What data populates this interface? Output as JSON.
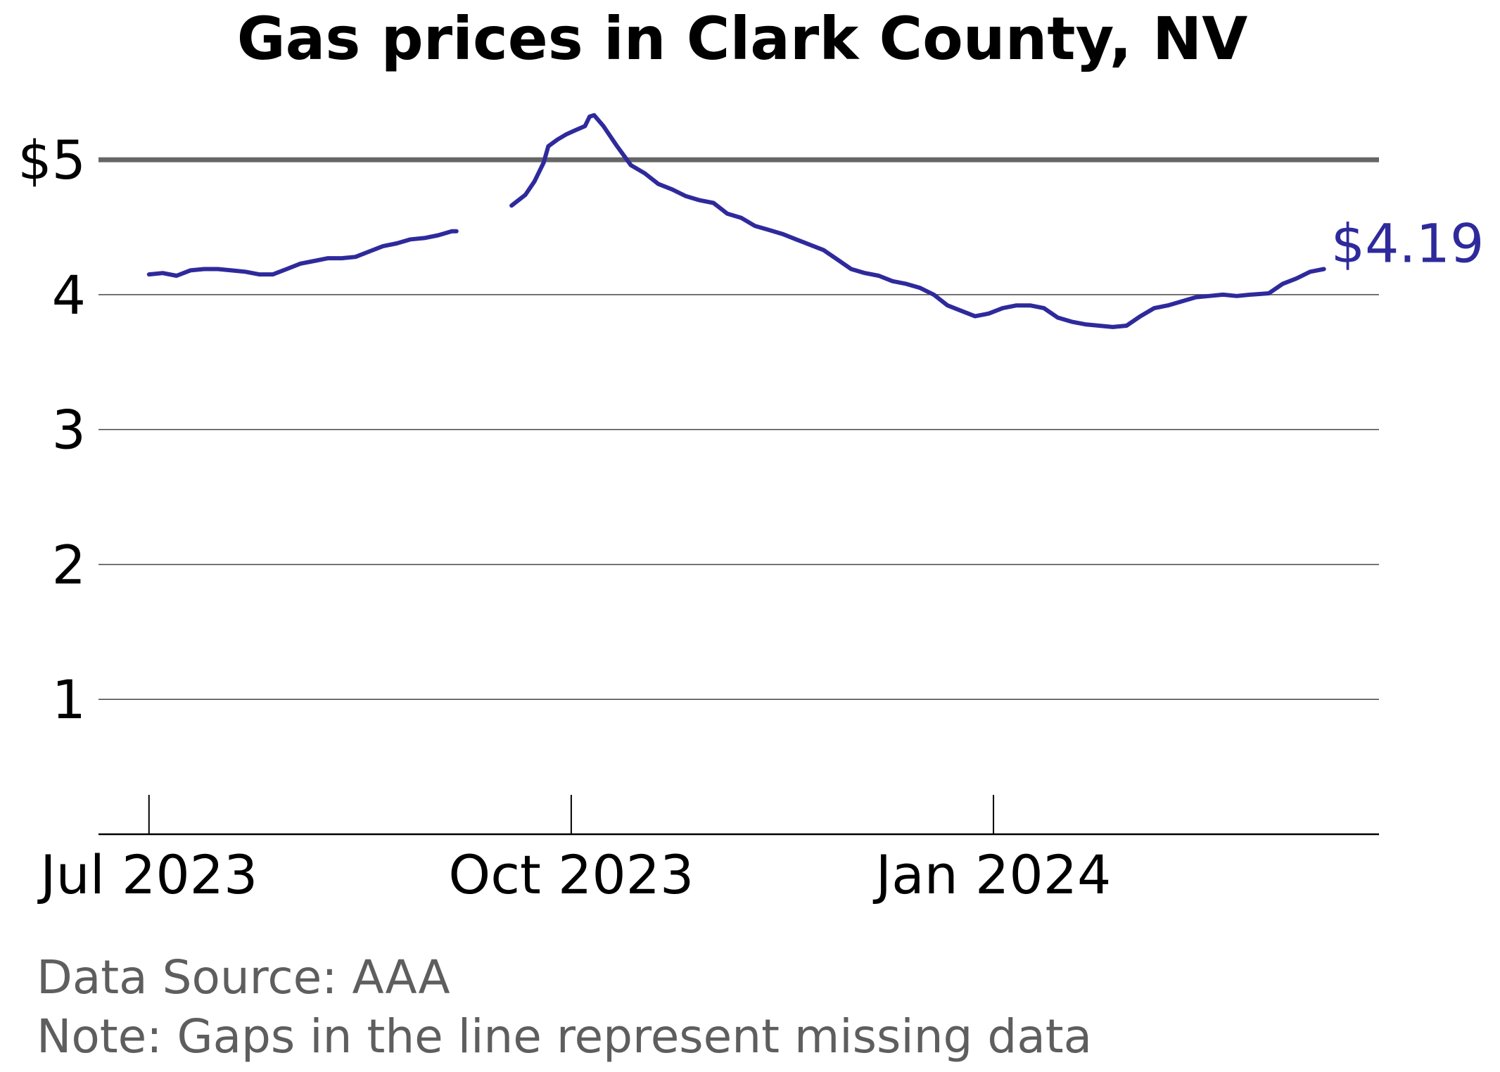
{
  "chart_data": {
    "type": "line",
    "title": "Gas prices in Clark County, NV",
    "xlabel": "",
    "ylabel": "",
    "ylim": [
      0,
      5.35
    ],
    "yticks": [
      1,
      2,
      3,
      4,
      5
    ],
    "ytick_labels": [
      "1",
      "2",
      "3",
      "4",
      "$5"
    ],
    "xlim": [
      "2023-06-20",
      "2024-03-25"
    ],
    "xticks": [
      "2023-07-01",
      "2023-10-01",
      "2024-01-01"
    ],
    "xtick_labels": [
      "Jul 2023",
      "Oct 2023",
      "Jan 2024"
    ],
    "reference_line": {
      "value": 5,
      "color": "#666666"
    },
    "grid": "horizontal",
    "line_color": "#2e2a9c",
    "end_label": "$4.19",
    "series": [
      {
        "segments": [
          [
            [
              "2023-07-01",
              4.15
            ],
            [
              "2023-07-04",
              4.16
            ],
            [
              "2023-07-07",
              4.14
            ],
            [
              "2023-07-10",
              4.18
            ],
            [
              "2023-07-13",
              4.19
            ],
            [
              "2023-07-16",
              4.19
            ],
            [
              "2023-07-19",
              4.18
            ],
            [
              "2023-07-22",
              4.17
            ],
            [
              "2023-07-25",
              4.15
            ],
            [
              "2023-07-28",
              4.15
            ],
            [
              "2023-07-31",
              4.19
            ],
            [
              "2023-08-03",
              4.23
            ],
            [
              "2023-08-06",
              4.25
            ],
            [
              "2023-08-09",
              4.27
            ],
            [
              "2023-08-12",
              4.27
            ],
            [
              "2023-08-15",
              4.28
            ],
            [
              "2023-08-18",
              4.32
            ],
            [
              "2023-08-21",
              4.36
            ],
            [
              "2023-08-24",
              4.38
            ],
            [
              "2023-08-27",
              4.41
            ],
            [
              "2023-08-30",
              4.42
            ],
            [
              "2023-09-02",
              4.44
            ],
            [
              "2023-09-05",
              4.47
            ],
            [
              "2023-09-06",
              4.47
            ]
          ],
          [
            [
              "2023-09-18",
              4.66
            ],
            [
              "2023-09-21",
              4.74
            ],
            [
              "2023-09-23",
              4.84
            ],
            [
              "2023-09-25",
              4.98
            ],
            [
              "2023-09-26",
              5.1
            ],
            [
              "2023-09-28",
              5.15
            ],
            [
              "2023-09-30",
              5.19
            ],
            [
              "2023-10-02",
              5.22
            ],
            [
              "2023-10-04",
              5.25
            ],
            [
              "2023-10-05",
              5.32
            ],
            [
              "2023-10-06",
              5.33
            ],
            [
              "2023-10-08",
              5.25
            ],
            [
              "2023-10-11",
              5.1
            ],
            [
              "2023-10-14",
              4.96
            ],
            [
              "2023-10-17",
              4.9
            ],
            [
              "2023-10-20",
              4.82
            ],
            [
              "2023-10-23",
              4.78
            ],
            [
              "2023-10-26",
              4.73
            ],
            [
              "2023-10-29",
              4.7
            ],
            [
              "2023-11-01",
              4.68
            ],
            [
              "2023-11-04",
              4.6
            ],
            [
              "2023-11-07",
              4.57
            ],
            [
              "2023-11-10",
              4.51
            ],
            [
              "2023-11-13",
              4.48
            ],
            [
              "2023-11-16",
              4.45
            ],
            [
              "2023-11-19",
              4.41
            ],
            [
              "2023-11-22",
              4.37
            ],
            [
              "2023-11-25",
              4.33
            ],
            [
              "2023-11-28",
              4.26
            ],
            [
              "2023-12-01",
              4.19
            ],
            [
              "2023-12-04",
              4.16
            ],
            [
              "2023-12-07",
              4.14
            ],
            [
              "2023-12-10",
              4.1
            ],
            [
              "2023-12-13",
              4.08
            ],
            [
              "2023-12-16",
              4.05
            ],
            [
              "2023-12-19",
              4.0
            ],
            [
              "2023-12-22",
              3.92
            ],
            [
              "2023-12-25",
              3.88
            ],
            [
              "2023-12-28",
              3.84
            ],
            [
              "2023-12-31",
              3.86
            ],
            [
              "2024-01-03",
              3.9
            ],
            [
              "2024-01-06",
              3.92
            ],
            [
              "2024-01-09",
              3.92
            ],
            [
              "2024-01-12",
              3.9
            ],
            [
              "2024-01-15",
              3.83
            ],
            [
              "2024-01-18",
              3.8
            ],
            [
              "2024-01-21",
              3.78
            ],
            [
              "2024-01-24",
              3.77
            ],
            [
              "2024-01-27",
              3.76
            ],
            [
              "2024-01-30",
              3.77
            ],
            [
              "2024-02-02",
              3.84
            ],
            [
              "2024-02-05",
              3.9
            ],
            [
              "2024-02-08",
              3.92
            ],
            [
              "2024-02-11",
              3.95
            ],
            [
              "2024-02-14",
              3.98
            ],
            [
              "2024-02-17",
              3.99
            ],
            [
              "2024-02-20",
              4.0
            ],
            [
              "2024-02-23",
              3.99
            ],
            [
              "2024-02-26",
              4.0
            ],
            [
              "2024-03-01",
              4.01
            ],
            [
              "2024-03-04",
              4.08
            ],
            [
              "2024-03-07",
              4.12
            ],
            [
              "2024-03-10",
              4.17
            ],
            [
              "2024-03-13",
              4.19
            ]
          ]
        ]
      }
    ]
  },
  "notes": {
    "source": "Data Source: AAA",
    "gaps": "Note: Gaps in the line represent missing data"
  }
}
